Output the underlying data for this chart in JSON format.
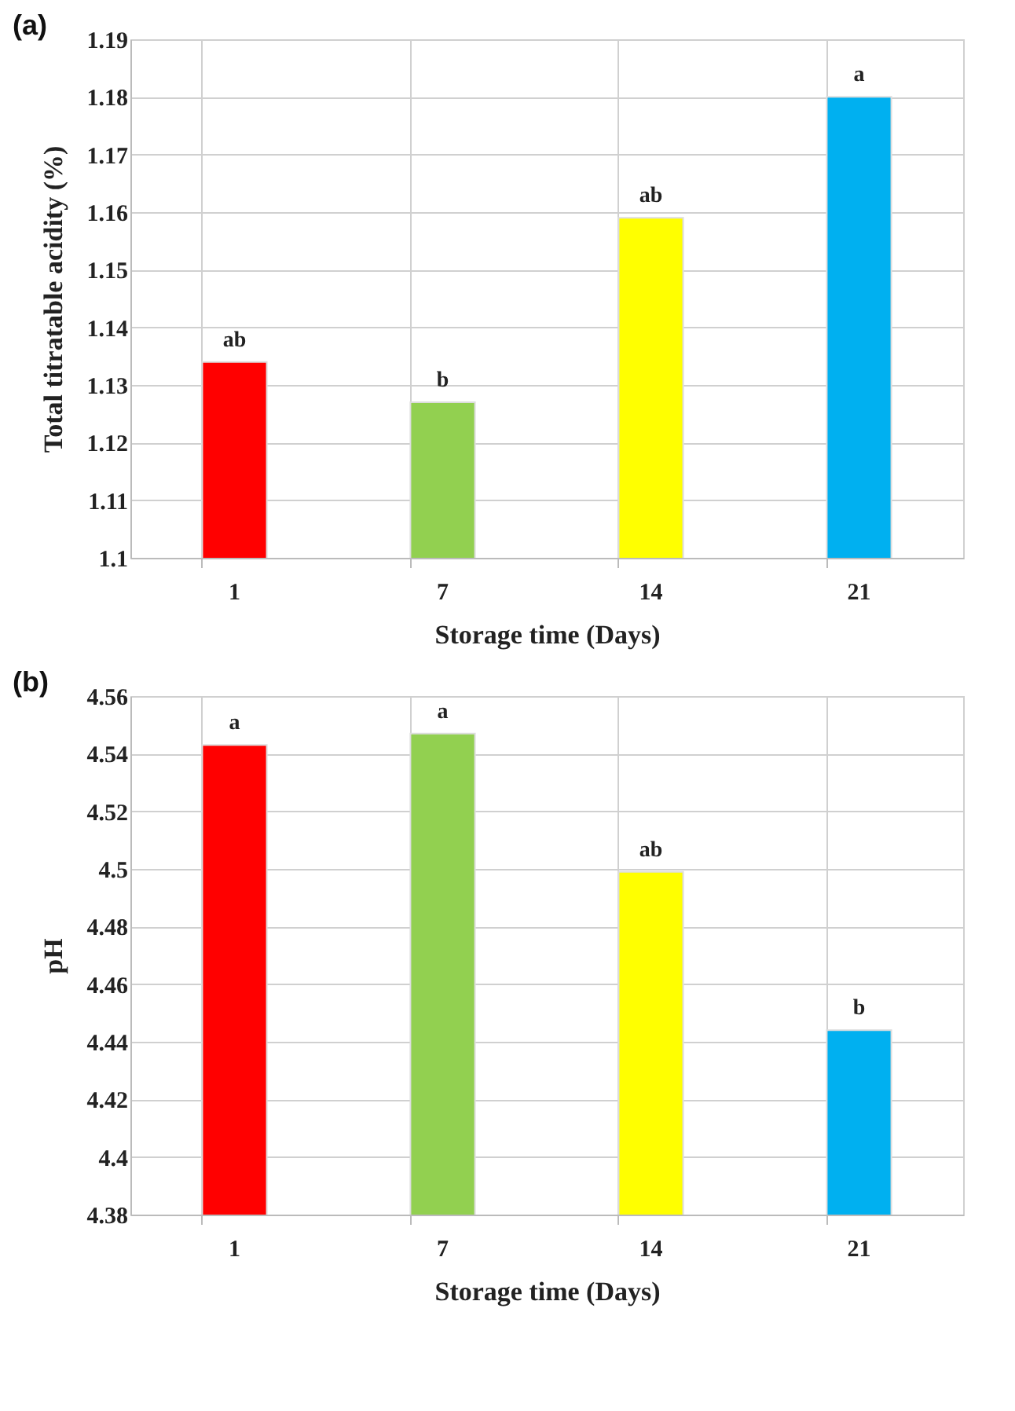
{
  "chart_data": [
    {
      "type": "bar",
      "title": "(a)",
      "xlabel": "Storage time (Days)",
      "ylabel": "Total titratable acidity (%)",
      "categories": [
        "1",
        "7",
        "14",
        "21"
      ],
      "values": [
        1.134,
        1.127,
        1.159,
        1.18
      ],
      "colors": [
        "#ff0000",
        "#92d050",
        "#ffff00",
        "#00b0f0"
      ],
      "ylim": [
        1.1,
        1.19
      ],
      "yticks": [
        1.1,
        1.11,
        1.12,
        1.13,
        1.14,
        1.15,
        1.16,
        1.17,
        1.18,
        1.19
      ],
      "grid": true,
      "annotations": [
        {
          "text": "ab",
          "x": "1",
          "y": 1.134
        },
        {
          "text": "b",
          "x": "7",
          "y": 1.127
        },
        {
          "text": "ab",
          "x": "14",
          "y": 1.159
        },
        {
          "text": "a",
          "x": "21",
          "y": 1.18
        }
      ]
    },
    {
      "type": "bar",
      "title": "(b)",
      "xlabel": "Storage time (Days)",
      "ylabel": "pH",
      "categories": [
        "1",
        "7",
        "14",
        "21"
      ],
      "values": [
        4.543,
        4.547,
        4.499,
        4.444
      ],
      "colors": [
        "#ff0000",
        "#92d050",
        "#ffff00",
        "#00b0f0"
      ],
      "ylim": [
        4.38,
        4.56
      ],
      "yticks": [
        4.38,
        4.4,
        4.42,
        4.44,
        4.46,
        4.48,
        4.5,
        4.52,
        4.54,
        4.56
      ],
      "grid": true,
      "annotations": [
        {
          "text": "a",
          "x": "1",
          "y": 4.543
        },
        {
          "text": "a",
          "x": "7",
          "y": 4.547
        },
        {
          "text": "ab",
          "x": "14",
          "y": 4.499
        },
        {
          "text": "b",
          "x": "21",
          "y": 4.444
        }
      ]
    }
  ]
}
